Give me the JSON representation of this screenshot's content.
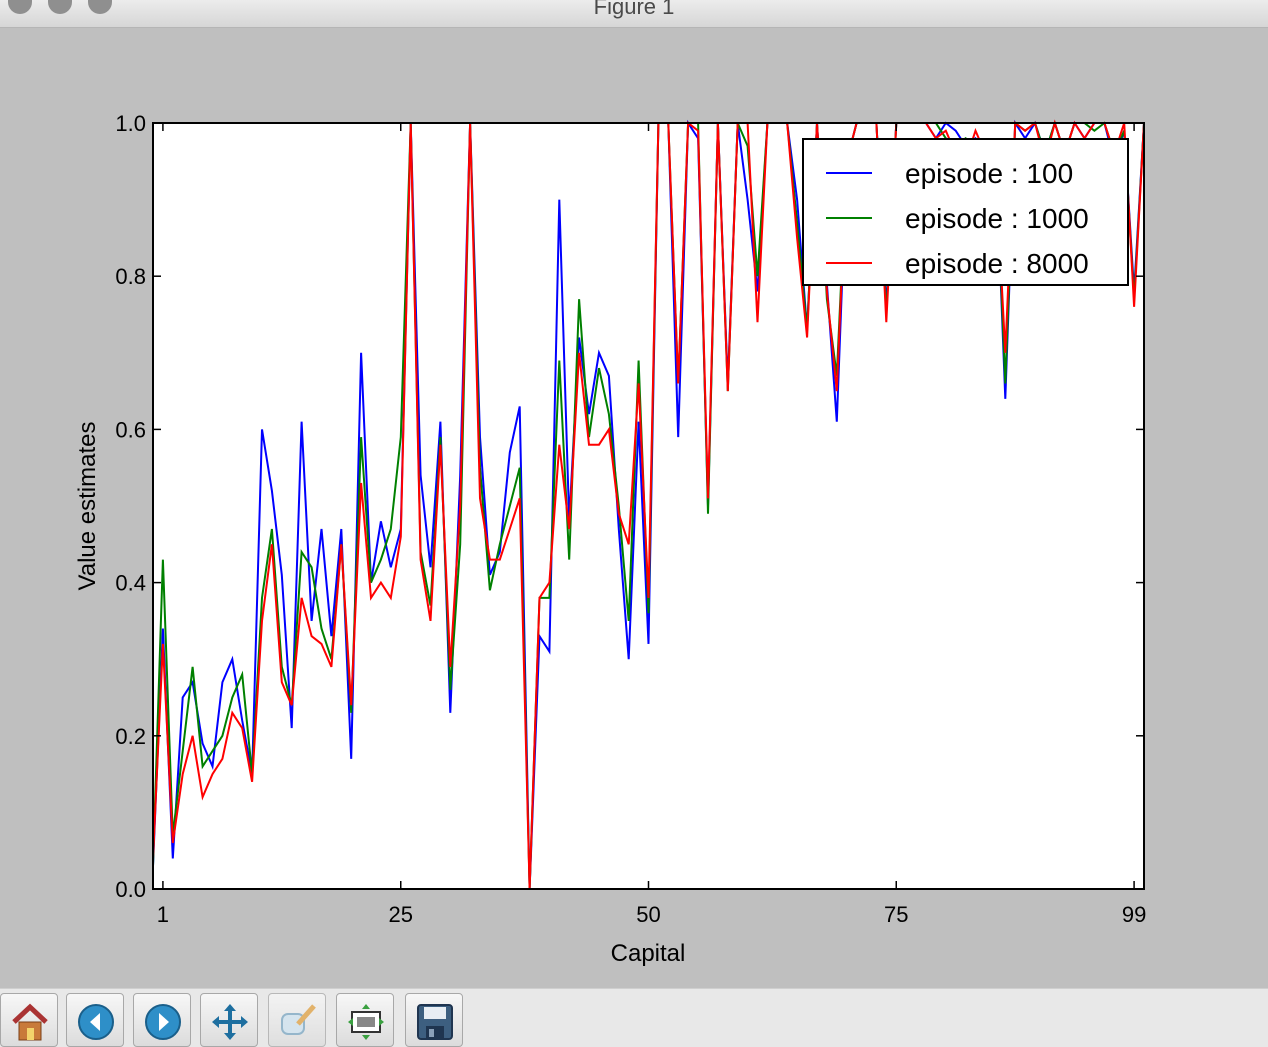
{
  "window": {
    "title": "Figure 1"
  },
  "toolbar": {
    "buttons": [
      {
        "name": "home",
        "icon": "home-icon"
      },
      {
        "name": "back",
        "icon": "back-arrow-icon"
      },
      {
        "name": "forward",
        "icon": "forward-arrow-icon"
      },
      {
        "name": "pan",
        "icon": "pan-arrows-icon"
      },
      {
        "name": "zoom",
        "icon": "zoom-rect-icon"
      },
      {
        "name": "subplots",
        "icon": "subplots-config-icon"
      },
      {
        "name": "save",
        "icon": "floppy-disk-icon"
      }
    ]
  },
  "chart_data": {
    "type": "line",
    "xlabel": "Capital",
    "ylabel": "Value estimates",
    "xlim": [
      0,
      100
    ],
    "ylim": [
      0.0,
      1.0
    ],
    "xticks": [
      1,
      25,
      50,
      75,
      99
    ],
    "yticks": [
      0.0,
      0.2,
      0.4,
      0.6,
      0.8,
      1.0
    ],
    "ytick_labels": [
      "0.0",
      "0.2",
      "0.4",
      "0.6",
      "0.8",
      "1.0"
    ],
    "legend_position": "top-right",
    "x": [
      0,
      1,
      2,
      3,
      4,
      5,
      6,
      7,
      8,
      9,
      10,
      11,
      12,
      13,
      14,
      15,
      16,
      17,
      18,
      19,
      20,
      21,
      22,
      23,
      24,
      25,
      26,
      27,
      28,
      29,
      30,
      31,
      32,
      33,
      34,
      35,
      36,
      37,
      38,
      39,
      40,
      41,
      42,
      43,
      44,
      45,
      46,
      47,
      48,
      49,
      50,
      51,
      52,
      53,
      54,
      55,
      56,
      57,
      58,
      59,
      60,
      61,
      62,
      63,
      64,
      65,
      66,
      67,
      68,
      69,
      70,
      71,
      72,
      73,
      74,
      75,
      76,
      77,
      78,
      79,
      80,
      81,
      82,
      83,
      84,
      85,
      86,
      87,
      88,
      89,
      90,
      91,
      92,
      93,
      94,
      95,
      96,
      97,
      98,
      99,
      100
    ],
    "series": [
      {
        "name": "episode : 100",
        "color": "#0000ff",
        "values": [
          0.03,
          0.34,
          0.04,
          0.25,
          0.27,
          0.19,
          0.16,
          0.27,
          0.3,
          0.22,
          0.15,
          0.6,
          0.52,
          0.41,
          0.21,
          0.61,
          0.35,
          0.47,
          0.33,
          0.47,
          0.17,
          0.7,
          0.4,
          0.48,
          0.42,
          0.47,
          1.0,
          0.54,
          0.42,
          0.61,
          0.23,
          0.54,
          1.0,
          0.59,
          0.41,
          0.44,
          0.57,
          0.63,
          0.0,
          0.33,
          0.31,
          0.9,
          0.48,
          0.72,
          0.62,
          0.7,
          0.67,
          0.47,
          0.3,
          0.61,
          0.32,
          1.0,
          1.0,
          0.59,
          1.0,
          0.98,
          0.5,
          1.0,
          0.66,
          1.0,
          0.9,
          0.78,
          1.0,
          1.0,
          1.0,
          0.9,
          0.73,
          1.0,
          0.79,
          0.61,
          0.95,
          1.0,
          1.0,
          1.0,
          0.76,
          1.0,
          1.0,
          1.0,
          1.0,
          0.98,
          1.0,
          0.99,
          0.97,
          0.98,
          0.96,
          0.97,
          0.64,
          1.0,
          0.98,
          1.0,
          0.96,
          1.0,
          0.96,
          1.0,
          0.98,
          1.0,
          1.0,
          0.95,
          0.99,
          0.78,
          1.0
        ]
      },
      {
        "name": "episode : 1000",
        "color": "#008000",
        "values": [
          0.03,
          0.43,
          0.07,
          0.18,
          0.29,
          0.16,
          0.18,
          0.2,
          0.25,
          0.28,
          0.15,
          0.38,
          0.47,
          0.29,
          0.24,
          0.44,
          0.42,
          0.34,
          0.3,
          0.45,
          0.23,
          0.59,
          0.4,
          0.43,
          0.47,
          0.59,
          1.0,
          0.44,
          0.37,
          0.59,
          0.26,
          0.45,
          1.0,
          0.55,
          0.39,
          0.45,
          0.5,
          0.55,
          0.0,
          0.38,
          0.38,
          0.69,
          0.43,
          0.77,
          0.59,
          0.68,
          0.62,
          0.5,
          0.35,
          0.69,
          0.36,
          1.0,
          1.0,
          0.66,
          1.0,
          1.0,
          0.49,
          1.0,
          0.65,
          1.0,
          0.97,
          0.8,
          1.0,
          1.0,
          1.0,
          0.87,
          0.73,
          1.0,
          0.77,
          0.67,
          0.95,
          1.0,
          1.0,
          1.0,
          0.75,
          1.0,
          1.0,
          1.0,
          1.0,
          1.0,
          0.98,
          0.97,
          0.98,
          0.97,
          0.97,
          0.97,
          0.66,
          1.0,
          0.99,
          1.0,
          0.96,
          1.0,
          0.96,
          1.0,
          1.0,
          0.99,
          1.0,
          0.96,
          0.99,
          0.77,
          1.0
        ]
      },
      {
        "name": "episode : 8000",
        "color": "#ff0000",
        "values": [
          0.04,
          0.32,
          0.06,
          0.15,
          0.2,
          0.12,
          0.15,
          0.17,
          0.23,
          0.21,
          0.14,
          0.35,
          0.45,
          0.27,
          0.24,
          0.38,
          0.33,
          0.32,
          0.29,
          0.45,
          0.24,
          0.53,
          0.38,
          0.4,
          0.38,
          0.46,
          1.0,
          0.43,
          0.35,
          0.58,
          0.29,
          0.5,
          1.0,
          0.51,
          0.43,
          0.43,
          0.47,
          0.51,
          0.0,
          0.38,
          0.4,
          0.58,
          0.47,
          0.7,
          0.58,
          0.58,
          0.6,
          0.49,
          0.45,
          0.66,
          0.38,
          1.0,
          1.0,
          0.66,
          1.0,
          0.99,
          0.51,
          1.0,
          0.65,
          1.0,
          1.0,
          0.74,
          1.0,
          1.0,
          1.0,
          0.85,
          0.72,
          1.0,
          0.78,
          0.65,
          0.95,
          1.0,
          1.0,
          1.0,
          0.74,
          1.0,
          1.0,
          1.0,
          1.0,
          0.98,
          0.99,
          0.96,
          0.95,
          0.99,
          0.96,
          0.95,
          0.7,
          1.0,
          0.99,
          1.0,
          0.95,
          1.0,
          0.96,
          1.0,
          0.98,
          1.0,
          1.0,
          0.96,
          1.0,
          0.76,
          1.0
        ]
      }
    ]
  }
}
